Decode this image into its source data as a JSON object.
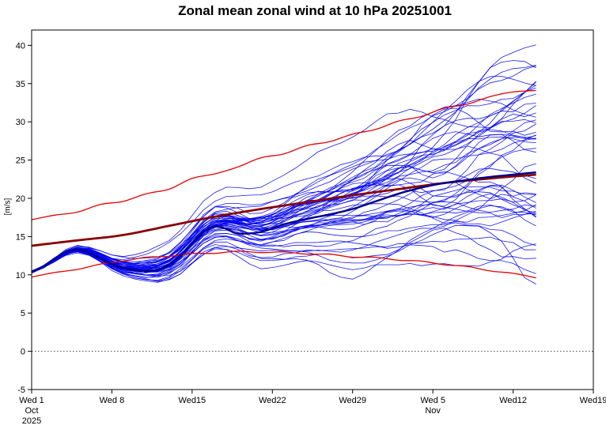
{
  "chart_data": {
    "type": "line",
    "title": "Zonal mean zonal wind at 10 hPa 20251001",
    "ylabel": "[m/s]",
    "ylim": [
      -5,
      42
    ],
    "yticks": [
      -5,
      0,
      5,
      10,
      15,
      20,
      25,
      30,
      35,
      40
    ],
    "xlim": [
      0,
      49
    ],
    "x_unit": "days since Wed 1 Oct 2025",
    "grid": false,
    "legend": "none",
    "zero_line": true,
    "xticks": [
      {
        "day": 0,
        "label": "Wed 1",
        "sub": [
          "Oct",
          "2025"
        ]
      },
      {
        "day": 7,
        "label": "Wed 8"
      },
      {
        "day": 14,
        "label": "Wed15"
      },
      {
        "day": 21,
        "label": "Wed22"
      },
      {
        "day": 28,
        "label": "Wed29"
      },
      {
        "day": 35,
        "label": "Wed 5",
        "sub": [
          "Nov"
        ]
      },
      {
        "day": 42,
        "label": "Wed12"
      },
      {
        "day": 49,
        "label": "Wed19"
      }
    ],
    "series": [
      {
        "name": "ensemble-mean",
        "label": "ensemble mean (analysis start)",
        "color": "#00008b",
        "width": 2.4,
        "x": [
          0,
          1,
          2,
          3,
          4,
          5,
          6,
          7,
          8,
          9,
          10,
          11,
          12,
          13,
          14,
          15,
          16,
          17,
          18,
          20,
          22,
          24,
          26,
          28,
          30,
          32,
          34,
          36,
          38,
          40,
          42,
          44
        ],
        "y": [
          10.4,
          11.1,
          12.1,
          13.0,
          13.3,
          12.9,
          12.1,
          11.4,
          10.9,
          10.6,
          10.5,
          10.7,
          11.3,
          12.6,
          14.2,
          15.6,
          16.3,
          16.0,
          15.4,
          15.6,
          16.6,
          17.3,
          17.9,
          18.6,
          19.6,
          20.6,
          21.4,
          22.0,
          22.4,
          22.8,
          23.1,
          23.4
        ]
      },
      {
        "name": "climatological-mean",
        "label": "climatological mean",
        "color": "#8b0000",
        "width": 2.8,
        "x": [
          0,
          4,
          8,
          12,
          16,
          20,
          24,
          28,
          32,
          36,
          40,
          44
        ],
        "y": [
          13.8,
          14.5,
          15.2,
          16.4,
          17.6,
          18.6,
          19.5,
          20.4,
          21.2,
          22.0,
          22.6,
          23.1
        ]
      },
      {
        "name": "climatological-upper",
        "label": "climatology upper bound",
        "color": "#e60000",
        "width": 1.3,
        "x": [
          0,
          2,
          4,
          6,
          8,
          10,
          12,
          14,
          16,
          18,
          20,
          22,
          24,
          26,
          28,
          30,
          32,
          34,
          36,
          38,
          40,
          42,
          44
        ],
        "y": [
          17.2,
          17.8,
          18.2,
          19.2,
          19.6,
          20.6,
          21.2,
          22.6,
          23.2,
          24.1,
          25.3,
          25.8,
          26.9,
          27.4,
          28.4,
          29.0,
          30.1,
          30.7,
          31.8,
          32.3,
          33.3,
          33.9,
          34.1
        ]
      },
      {
        "name": "climatological-lower",
        "label": "climatology lower bound",
        "color": "#e60000",
        "width": 1.3,
        "x": [
          0,
          2,
          4,
          6,
          8,
          10,
          12,
          14,
          16,
          18,
          20,
          22,
          24,
          26,
          28,
          30,
          32,
          34,
          36,
          38,
          40,
          42,
          44
        ],
        "y": [
          9.7,
          10.3,
          10.7,
          11.4,
          11.8,
          12.3,
          12.4,
          12.8,
          12.8,
          13.1,
          12.9,
          13.0,
          12.7,
          12.7,
          12.3,
          12.3,
          11.9,
          11.8,
          11.3,
          11.1,
          10.5,
          10.2,
          9.6
        ]
      }
    ],
    "ensemble": {
      "count": 50,
      "color": "#0000f0",
      "width": 0.8,
      "opacity": 0.9,
      "seed": 20251001,
      "anchor_days": [
        0,
        4,
        8,
        12,
        16,
        20,
        24,
        28,
        32,
        36,
        40,
        44
      ],
      "spread": [
        0.15,
        0.5,
        1.0,
        1.6,
        2.2,
        2.9,
        3.7,
        4.6,
        5.6,
        6.8,
        8.5,
        10.5
      ]
    }
  }
}
